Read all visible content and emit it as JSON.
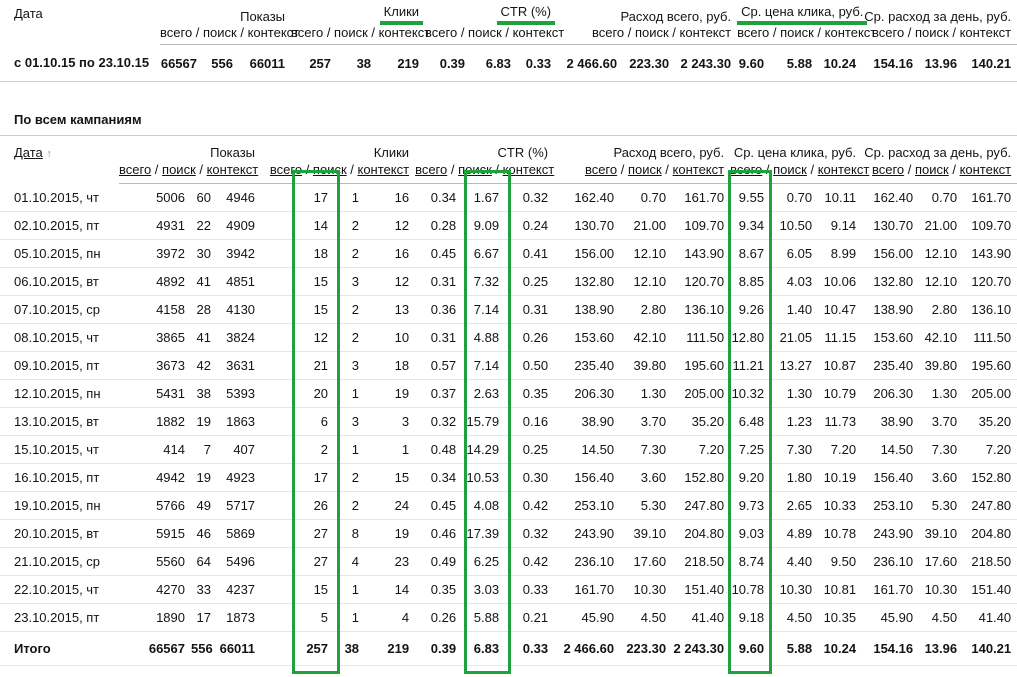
{
  "labels": {
    "date": "Дата",
    "sort_arrow": "↑",
    "sub_parts": [
      "всего",
      "поиск",
      "контекст"
    ],
    "sub_joined": "всего / поиск / контекст",
    "total": "Итого"
  },
  "colors": {
    "highlight_green": "#1fa23c"
  },
  "summary_table": {
    "groups": [
      {
        "label": "Показы",
        "green_underline": false
      },
      {
        "label": "Клики",
        "green_underline": true
      },
      {
        "label": "CTR (%)",
        "green_underline": true
      },
      {
        "label": "Расход всего, руб.",
        "green_underline": false
      },
      {
        "label": "Ср. цена клика, руб.",
        "green_underline": true
      },
      {
        "label": "Ср. расход за день, руб.",
        "green_underline": false
      }
    ],
    "row": {
      "date": "с 01.10.15 по 23.10.15",
      "values": [
        "66567",
        "556",
        "66011",
        "257",
        "38",
        "219",
        "0.39",
        "6.83",
        "0.33",
        "2 466.60",
        "223.30",
        "2 243.30",
        "9.60",
        "5.88",
        "10.24",
        "154.16",
        "13.96",
        "140.21"
      ]
    }
  },
  "campaigns_table": {
    "title": "По всем кампаниям",
    "groups": [
      {
        "label": "Показы"
      },
      {
        "label": "Клики"
      },
      {
        "label": "CTR (%)"
      },
      {
        "label": "Расход всего, руб."
      },
      {
        "label": "Ср. цена клика, руб."
      },
      {
        "label": "Ср. расход за день, руб."
      }
    ],
    "highlighted_value_columns": [
      "Клики всего",
      "CTR поиск",
      "Ср. цена клика всего"
    ],
    "rows": [
      {
        "date": "01.10.2015, чт",
        "values": [
          "5006",
          "60",
          "4946",
          "17",
          "1",
          "16",
          "0.34",
          "1.67",
          "0.32",
          "162.40",
          "0.70",
          "161.70",
          "9.55",
          "0.70",
          "10.11",
          "162.40",
          "0.70",
          "161.70"
        ]
      },
      {
        "date": "02.10.2015, пт",
        "values": [
          "4931",
          "22",
          "4909",
          "14",
          "2",
          "12",
          "0.28",
          "9.09",
          "0.24",
          "130.70",
          "21.00",
          "109.70",
          "9.34",
          "10.50",
          "9.14",
          "130.70",
          "21.00",
          "109.70"
        ]
      },
      {
        "date": "05.10.2015, пн",
        "values": [
          "3972",
          "30",
          "3942",
          "18",
          "2",
          "16",
          "0.45",
          "6.67",
          "0.41",
          "156.00",
          "12.10",
          "143.90",
          "8.67",
          "6.05",
          "8.99",
          "156.00",
          "12.10",
          "143.90"
        ]
      },
      {
        "date": "06.10.2015, вт",
        "values": [
          "4892",
          "41",
          "4851",
          "15",
          "3",
          "12",
          "0.31",
          "7.32",
          "0.25",
          "132.80",
          "12.10",
          "120.70",
          "8.85",
          "4.03",
          "10.06",
          "132.80",
          "12.10",
          "120.70"
        ]
      },
      {
        "date": "07.10.2015, ср",
        "values": [
          "4158",
          "28",
          "4130",
          "15",
          "2",
          "13",
          "0.36",
          "7.14",
          "0.31",
          "138.90",
          "2.80",
          "136.10",
          "9.26",
          "1.40",
          "10.47",
          "138.90",
          "2.80",
          "136.10"
        ]
      },
      {
        "date": "08.10.2015, чт",
        "values": [
          "3865",
          "41",
          "3824",
          "12",
          "2",
          "10",
          "0.31",
          "4.88",
          "0.26",
          "153.60",
          "42.10",
          "111.50",
          "12.80",
          "21.05",
          "11.15",
          "153.60",
          "42.10",
          "111.50"
        ]
      },
      {
        "date": "09.10.2015, пт",
        "values": [
          "3673",
          "42",
          "3631",
          "21",
          "3",
          "18",
          "0.57",
          "7.14",
          "0.50",
          "235.40",
          "39.80",
          "195.60",
          "11.21",
          "13.27",
          "10.87",
          "235.40",
          "39.80",
          "195.60"
        ]
      },
      {
        "date": "12.10.2015, пн",
        "values": [
          "5431",
          "38",
          "5393",
          "20",
          "1",
          "19",
          "0.37",
          "2.63",
          "0.35",
          "206.30",
          "1.30",
          "205.00",
          "10.32",
          "1.30",
          "10.79",
          "206.30",
          "1.30",
          "205.00"
        ]
      },
      {
        "date": "13.10.2015, вт",
        "values": [
          "1882",
          "19",
          "1863",
          "6",
          "3",
          "3",
          "0.32",
          "15.79",
          "0.16",
          "38.90",
          "3.70",
          "35.20",
          "6.48",
          "1.23",
          "11.73",
          "38.90",
          "3.70",
          "35.20"
        ]
      },
      {
        "date": "15.10.2015, чт",
        "values": [
          "414",
          "7",
          "407",
          "2",
          "1",
          "1",
          "0.48",
          "14.29",
          "0.25",
          "14.50",
          "7.30",
          "7.20",
          "7.25",
          "7.30",
          "7.20",
          "14.50",
          "7.30",
          "7.20"
        ]
      },
      {
        "date": "16.10.2015, пт",
        "values": [
          "4942",
          "19",
          "4923",
          "17",
          "2",
          "15",
          "0.34",
          "10.53",
          "0.30",
          "156.40",
          "3.60",
          "152.80",
          "9.20",
          "1.80",
          "10.19",
          "156.40",
          "3.60",
          "152.80"
        ]
      },
      {
        "date": "19.10.2015, пн",
        "values": [
          "5766",
          "49",
          "5717",
          "26",
          "2",
          "24",
          "0.45",
          "4.08",
          "0.42",
          "253.10",
          "5.30",
          "247.80",
          "9.73",
          "2.65",
          "10.33",
          "253.10",
          "5.30",
          "247.80"
        ]
      },
      {
        "date": "20.10.2015, вт",
        "values": [
          "5915",
          "46",
          "5869",
          "27",
          "8",
          "19",
          "0.46",
          "17.39",
          "0.32",
          "243.90",
          "39.10",
          "204.80",
          "9.03",
          "4.89",
          "10.78",
          "243.90",
          "39.10",
          "204.80"
        ]
      },
      {
        "date": "21.10.2015, ср",
        "values": [
          "5560",
          "64",
          "5496",
          "27",
          "4",
          "23",
          "0.49",
          "6.25",
          "0.42",
          "236.10",
          "17.60",
          "218.50",
          "8.74",
          "4.40",
          "9.50",
          "236.10",
          "17.60",
          "218.50"
        ]
      },
      {
        "date": "22.10.2015, чт",
        "values": [
          "4270",
          "33",
          "4237",
          "15",
          "1",
          "14",
          "0.35",
          "3.03",
          "0.33",
          "161.70",
          "10.30",
          "151.40",
          "10.78",
          "10.30",
          "10.81",
          "161.70",
          "10.30",
          "151.40"
        ]
      },
      {
        "date": "23.10.2015, пт",
        "values": [
          "1890",
          "17",
          "1873",
          "5",
          "1",
          "4",
          "0.26",
          "5.88",
          "0.21",
          "45.90",
          "4.50",
          "41.40",
          "9.18",
          "4.50",
          "10.35",
          "45.90",
          "4.50",
          "41.40"
        ]
      }
    ],
    "total": {
      "values": [
        "66567",
        "556",
        "66011",
        "257",
        "38",
        "219",
        "0.39",
        "6.83",
        "0.33",
        "2 466.60",
        "223.30",
        "2 243.30",
        "9.60",
        "5.88",
        "10.24",
        "154.16",
        "13.96",
        "140.21"
      ]
    }
  }
}
